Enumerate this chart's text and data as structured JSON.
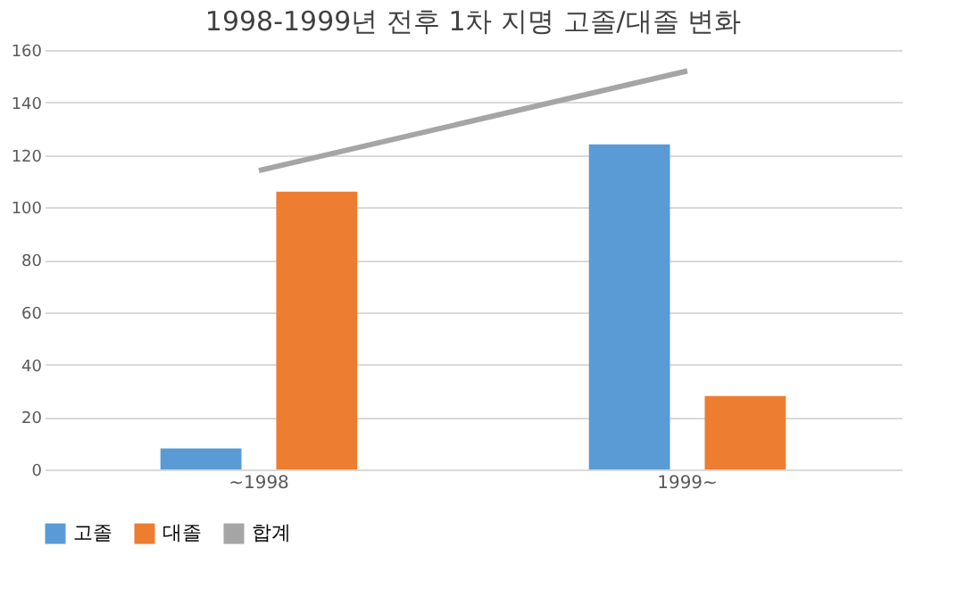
{
  "chart_data": {
    "type": "bar",
    "title": "1998-1999년 전후 1차 지명 고졸/대졸 변화",
    "categories": [
      "~1998",
      "1999~"
    ],
    "series": [
      {
        "name": "고졸",
        "color": "#5b9bd5",
        "values": [
          8,
          124
        ]
      },
      {
        "name": "대졸",
        "color": "#ed7d31",
        "values": [
          106,
          28
        ]
      },
      {
        "name": "합계",
        "color": "#a5a5a5",
        "values": [
          114,
          152
        ],
        "type": "line"
      }
    ],
    "ylim": [
      0,
      160
    ],
    "yticks": [
      0,
      20,
      40,
      60,
      80,
      100,
      120,
      140,
      160
    ],
    "grid": "y",
    "legend": "bottom"
  }
}
